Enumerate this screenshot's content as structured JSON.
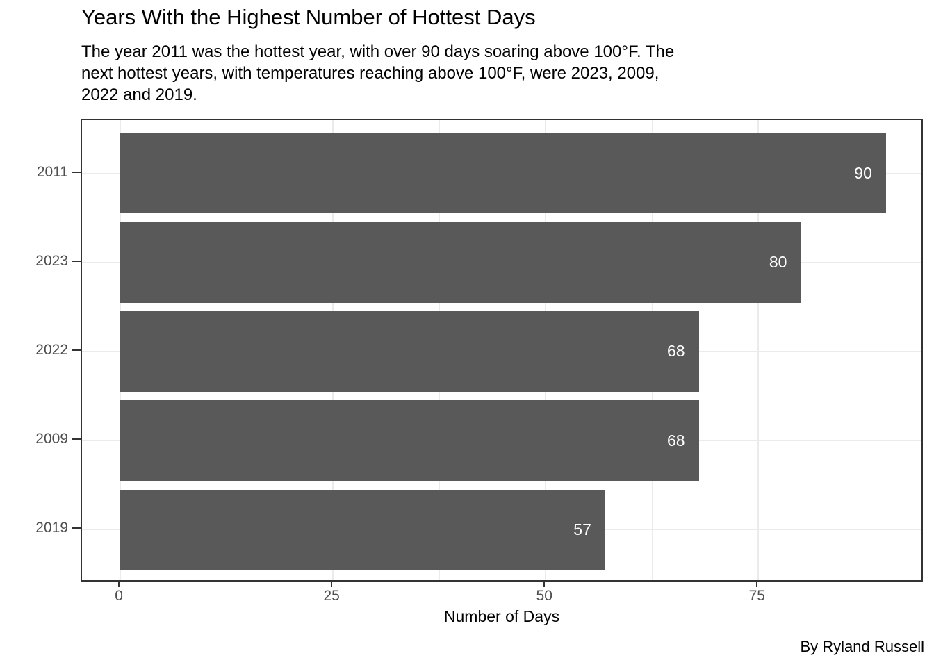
{
  "chart_data": {
    "type": "bar",
    "orientation": "horizontal",
    "title": "Years With the Highest Number of Hottest Days",
    "subtitle": "The year 2011 was the hottest year, with over 90 days soaring above 100°F. The next hottest years, with temperatures reaching above 100°F, were 2023, 2009, 2022 and 2019.",
    "subtitle_lines": [
      "The year 2011 was the hottest year, with over 90 days soaring above 100°F. The",
      "next hottest years, with temperatures reaching above 100°F, were 2023, 2009,",
      "2022 and 2019."
    ],
    "caption": "By Ryland Russell",
    "categories": [
      "2011",
      "2023",
      "2022",
      "2009",
      "2019"
    ],
    "values": [
      90,
      80,
      68,
      68,
      57
    ],
    "xlabel": "Number of Days",
    "ylabel": "",
    "x_major_ticks": [
      0,
      25,
      50,
      75
    ],
    "x_minor_gridlines": [
      12.5,
      37.5,
      62.5,
      87.5
    ],
    "xlim": [
      -4.5,
      94.5
    ],
    "grid": true,
    "legend": "none",
    "colors": {
      "bar": "#595959",
      "bar_label": "#ffffff",
      "grid": "#ebebeb",
      "panel_border": "#333333",
      "axis_text": "#4d4d4d",
      "text": "#000000",
      "background": "#ffffff"
    }
  }
}
